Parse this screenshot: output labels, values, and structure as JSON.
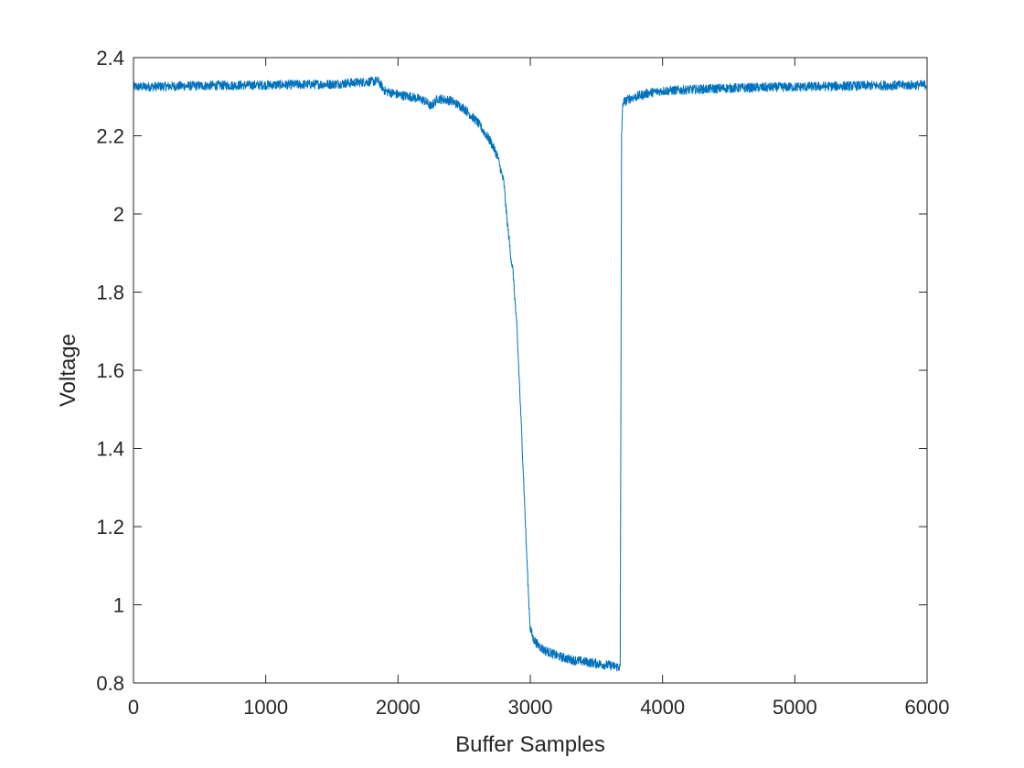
{
  "chart_data": {
    "type": "line",
    "title": "",
    "xlabel": "Buffer Samples",
    "ylabel": "Voltage",
    "xlim": [
      0,
      6000
    ],
    "ylim": [
      0.8,
      2.4
    ],
    "xticks": [
      0,
      1000,
      2000,
      3000,
      4000,
      5000,
      6000
    ],
    "xtick_labels": [
      "0",
      "1000",
      "2000",
      "3000",
      "4000",
      "5000",
      "6000"
    ],
    "yticks": [
      0.8,
      1,
      1.2,
      1.4,
      1.6,
      1.8,
      2,
      2.2,
      2.4
    ],
    "ytick_labels": [
      "0.8",
      "1",
      "1.2",
      "1.4",
      "1.6",
      "1.8",
      "2",
      "2.2",
      "2.4"
    ],
    "grid": false,
    "legend": "none",
    "line_color": "#0072BD",
    "noise_amplitude": 0.012,
    "series": [
      {
        "x": [
          0,
          500,
          1000,
          1500,
          1850,
          1900,
          2000,
          2100,
          2200,
          2250,
          2300,
          2400,
          2500,
          2600,
          2650,
          2700,
          2750,
          2800,
          2820,
          2850,
          2870,
          2880,
          2900,
          2920,
          2950,
          2970,
          2990,
          3000,
          3020,
          3050,
          3100,
          3200,
          3300,
          3400,
          3500,
          3600,
          3680,
          3685,
          3690,
          3700,
          3750,
          3800,
          3900,
          4000,
          4500,
          5000,
          5500,
          6000
        ],
        "y": [
          2.325,
          2.328,
          2.33,
          2.332,
          2.34,
          2.315,
          2.305,
          2.3,
          2.29,
          2.275,
          2.295,
          2.29,
          2.27,
          2.235,
          2.21,
          2.185,
          2.15,
          2.08,
          2.0,
          1.9,
          1.85,
          1.8,
          1.7,
          1.55,
          1.32,
          1.15,
          1.0,
          0.94,
          0.915,
          0.9,
          0.885,
          0.87,
          0.86,
          0.855,
          0.85,
          0.845,
          0.84,
          1.5,
          2.2,
          2.285,
          2.295,
          2.3,
          2.31,
          2.315,
          2.322,
          2.325,
          2.328,
          2.33
        ]
      }
    ]
  }
}
